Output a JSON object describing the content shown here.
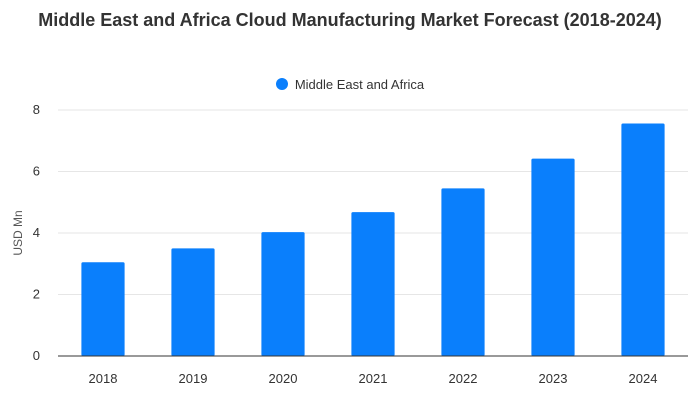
{
  "chart_data": {
    "type": "bar",
    "title": "Middle East and Africa Cloud Manufacturing Market Forecast (2018-2024)",
    "categories": [
      "2018",
      "2019",
      "2020",
      "2021",
      "2022",
      "2023",
      "2024"
    ],
    "series": [
      {
        "name": "Middle East and Africa",
        "values": [
          3.05,
          3.5,
          4.03,
          4.68,
          5.45,
          6.42,
          7.56
        ],
        "color": "#0a7ffc"
      }
    ],
    "xlabel": "",
    "ylabel": "USD Mn",
    "ylim": [
      0,
      8
    ],
    "yticks": [
      0,
      2,
      4,
      6,
      8
    ],
    "grid": true,
    "legend_position": "top-center"
  }
}
